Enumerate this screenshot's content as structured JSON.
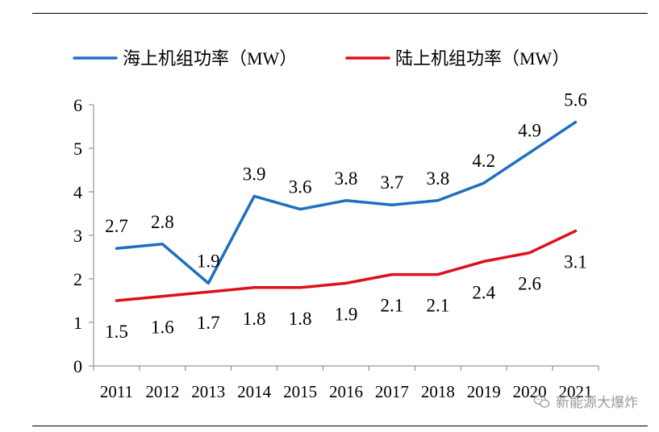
{
  "chart_data": {
    "type": "line",
    "title": "",
    "xlabel": "",
    "ylabel": "",
    "ylim": [
      0,
      6
    ],
    "yticks": [
      0,
      1,
      2,
      3,
      4,
      5,
      6
    ],
    "categories": [
      "2011",
      "2012",
      "2013",
      "2014",
      "2015",
      "2016",
      "2017",
      "2018",
      "2019",
      "2020",
      "2021"
    ],
    "series": [
      {
        "name": "海上机组功率（MW）",
        "color": "#1f6fbf",
        "values": [
          2.7,
          2.8,
          1.9,
          3.9,
          3.6,
          3.8,
          3.7,
          3.8,
          4.2,
          4.9,
          5.6
        ],
        "labels": [
          "2.7",
          "2.8",
          "1.9",
          "3.9",
          "3.6",
          "3.8",
          "3.7",
          "3.8",
          "4.2",
          "4.9",
          "5.6"
        ],
        "label_position": "above"
      },
      {
        "name": "陆上机组功率（MW）",
        "color": "#e0101a",
        "values": [
          1.5,
          1.6,
          1.7,
          1.8,
          1.8,
          1.9,
          2.1,
          2.1,
          2.4,
          2.6,
          3.1
        ],
        "labels": [
          "1.5",
          "1.6",
          "1.7",
          "1.8",
          "1.8",
          "1.9",
          "2.1",
          "2.1",
          "2.4",
          "2.6",
          "3.1"
        ],
        "label_position": "below"
      }
    ],
    "legend_position": "top",
    "grid": false
  },
  "watermark": {
    "text": "新能源大爆炸",
    "icon": "wechat-icon"
  }
}
